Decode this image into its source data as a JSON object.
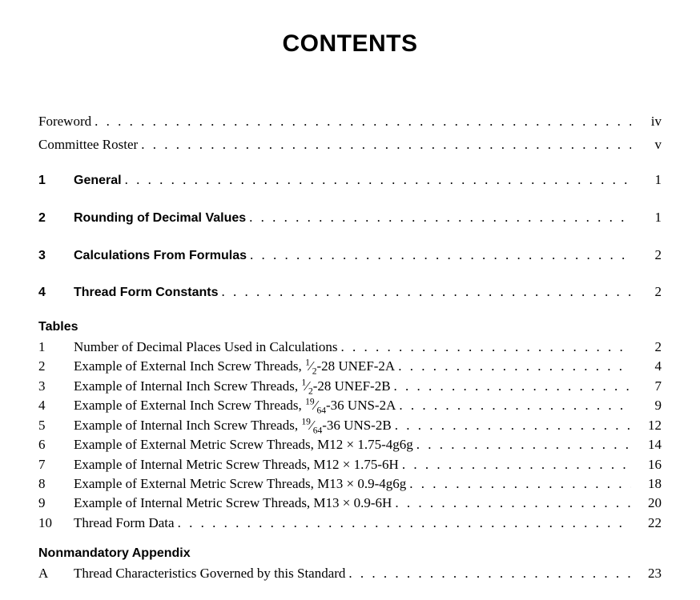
{
  "title": "CONTENTS",
  "front": [
    {
      "label": "Foreword",
      "page": "iv"
    },
    {
      "label": "Committee Roster",
      "page": "v"
    }
  ],
  "sections": [
    {
      "num": "1",
      "label": "General",
      "page": "1"
    },
    {
      "num": "2",
      "label": "Rounding of Decimal Values",
      "page": "1"
    },
    {
      "num": "3",
      "label": "Calculations From Formulas",
      "page": "2"
    },
    {
      "num": "4",
      "label": "Thread Form Constants",
      "page": "2"
    }
  ],
  "tables_heading": "Tables",
  "tables": [
    {
      "num": "1",
      "label_html": "Number of Decimal Places Used in Calculations",
      "page": "2"
    },
    {
      "num": "2",
      "label_html": "Example of External Inch Screw Threads, <span class='frac'><sup>1</sup>⁄<sub>2</sub></span>-28 UNEF-2A",
      "page": "4"
    },
    {
      "num": "3",
      "label_html": "Example of Internal Inch Screw Threads, <span class='frac'><sup>1</sup>⁄<sub>2</sub></span>-28 UNEF-2B",
      "page": "7"
    },
    {
      "num": "4",
      "label_html": "Example of External Inch Screw Threads, <span class='frac'><sup>19</sup>⁄<sub>64</sub></span>-36 UNS-2A",
      "page": "9"
    },
    {
      "num": "5",
      "label_html": "Example of Internal Inch Screw Threads, <span class='frac'><sup>19</sup>⁄<sub>64</sub></span>-36 UNS-2B",
      "page": "12"
    },
    {
      "num": "6",
      "label_html": "Example of External Metric Screw Threads, M12 × 1.75-4g6g",
      "page": "14"
    },
    {
      "num": "7",
      "label_html": "Example of Internal Metric Screw Threads, M12 × 1.75-6H",
      "page": "16"
    },
    {
      "num": "8",
      "label_html": "Example of External Metric Screw Threads, M13 × 0.9-4g6g",
      "page": "18"
    },
    {
      "num": "9",
      "label_html": "Example of Internal Metric Screw Threads, M13 × 0.9-6H",
      "page": "20"
    },
    {
      "num": "10",
      "label_html": "Thread Form Data",
      "page": "22"
    }
  ],
  "appendix_heading": "Nonmandatory Appendix",
  "appendix": [
    {
      "num": "A",
      "label": "Thread Characteristics Governed by this Standard",
      "page": "23"
    }
  ]
}
